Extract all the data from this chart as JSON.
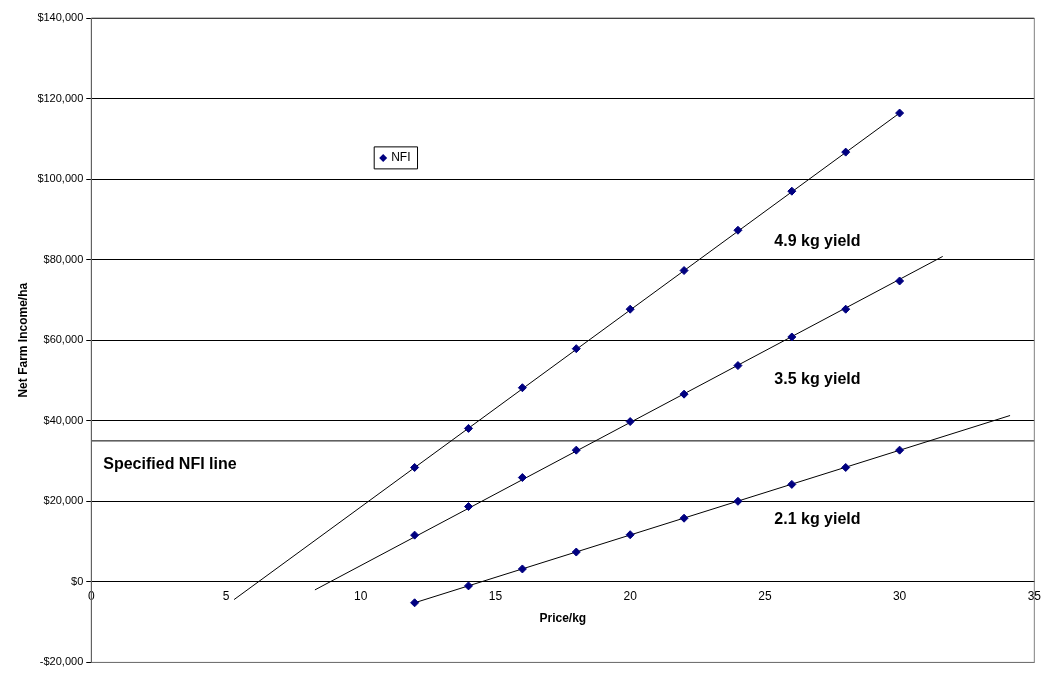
{
  "chart_data": {
    "type": "scatter",
    "xlabel": "Price/kg",
    "ylabel": "Net Farm Income/ha",
    "xlim": [
      0,
      35
    ],
    "xticks": [
      0,
      5,
      10,
      15,
      20,
      25,
      30,
      35
    ],
    "ylim": [
      -20000,
      140000
    ],
    "yticks": [
      {
        "value": -20000,
        "label": "-$20,000"
      },
      {
        "value": 0,
        "label": "$0"
      },
      {
        "value": 20000,
        "label": "$20,000"
      },
      {
        "value": 40000,
        "label": "$40,000"
      },
      {
        "value": 60000,
        "label": "$60,000"
      },
      {
        "value": 80000,
        "label": "$80,000"
      },
      {
        "value": 100000,
        "label": "$100,000"
      },
      {
        "value": 120000,
        "label": "$120,000"
      },
      {
        "value": 140000,
        "label": "$140,000"
      }
    ],
    "grid": "y",
    "legend": "top left",
    "series": [
      {
        "name": "NFI",
        "marker": "diamond",
        "color": "#000080",
        "x": [
          12,
          14,
          16,
          18,
          20,
          22,
          24,
          26,
          28,
          30,
          12,
          14,
          16,
          18,
          20,
          22,
          24,
          26,
          28,
          30,
          12,
          14,
          16,
          18,
          20,
          22,
          24,
          26,
          28,
          30
        ],
        "values": [
          28400,
          38100,
          48200,
          57900,
          67700,
          77300,
          87300,
          97000,
          106700,
          116400,
          11600,
          18700,
          25900,
          32700,
          39800,
          46600,
          53700,
          60800,
          67700,
          74700,
          -5200,
          -1000,
          3200,
          7400,
          11700,
          15800,
          20000,
          24200,
          28400,
          32700
        ]
      },
      {
        "name": "4.9 kg yield",
        "type": "line",
        "marker": "none",
        "color": "#000000",
        "x": [
          5.3,
          30
        ],
        "values": [
          -4400,
          116400
        ]
      },
      {
        "name": "3.5 kg yield",
        "type": "line",
        "marker": "none",
        "color": "#000000",
        "x": [
          8.3,
          31.6
        ],
        "values": [
          -2000,
          80800
        ]
      },
      {
        "name": "2.1 kg yield",
        "type": "line",
        "marker": "none",
        "color": "#000000",
        "x": [
          12,
          34.1
        ],
        "values": [
          -5200,
          41300
        ]
      }
    ],
    "ref_lines": [
      {
        "axis": "y",
        "value": 35000,
        "label": "Specified NFI line",
        "color": "#000000"
      }
    ]
  }
}
